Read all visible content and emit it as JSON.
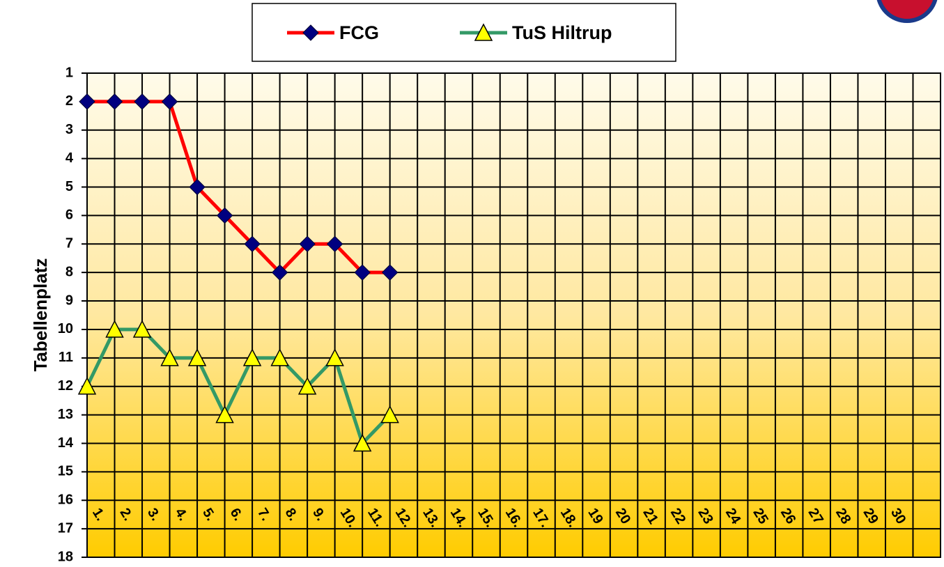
{
  "chart_data": {
    "type": "line",
    "y_label": "Tabellenplatz",
    "categories": [
      "1.",
      "2.",
      "3.",
      "4.",
      "5.",
      "6.",
      "7.",
      "8.",
      "9.",
      "10.",
      "11.",
      "12.",
      "13.",
      "14.",
      "15.",
      "16.",
      "17.",
      "18.",
      "19",
      "20",
      "21",
      "22",
      "23",
      "24",
      "25",
      "26",
      "27",
      "28",
      "29",
      "30"
    ],
    "series": [
      {
        "name": "FCG",
        "color": "#ff0000",
        "marker": "diamond",
        "marker_color": "#000080",
        "values": [
          2,
          2,
          2,
          2,
          5,
          6,
          7,
          8,
          7,
          7,
          8,
          8,
          null,
          null,
          null,
          null,
          null,
          null,
          null,
          null,
          null,
          null,
          null,
          null,
          null,
          null,
          null,
          null,
          null,
          null
        ]
      },
      {
        "name": "TuS Hiltrup",
        "color": "#339966",
        "marker": "triangle",
        "marker_color": "#ffff00",
        "values": [
          12,
          10,
          10,
          11,
          11,
          13,
          11,
          11,
          12,
          11,
          14,
          13,
          null,
          null,
          null,
          null,
          null,
          null,
          null,
          null,
          null,
          null,
          null,
          null,
          null,
          null,
          null,
          null,
          null,
          null
        ]
      }
    ],
    "ylim": [
      18,
      1
    ],
    "yticks": [
      1,
      2,
      3,
      4,
      5,
      6,
      7,
      8,
      9,
      10,
      11,
      12,
      13,
      14,
      15,
      16,
      17,
      18
    ],
    "grid": true
  }
}
